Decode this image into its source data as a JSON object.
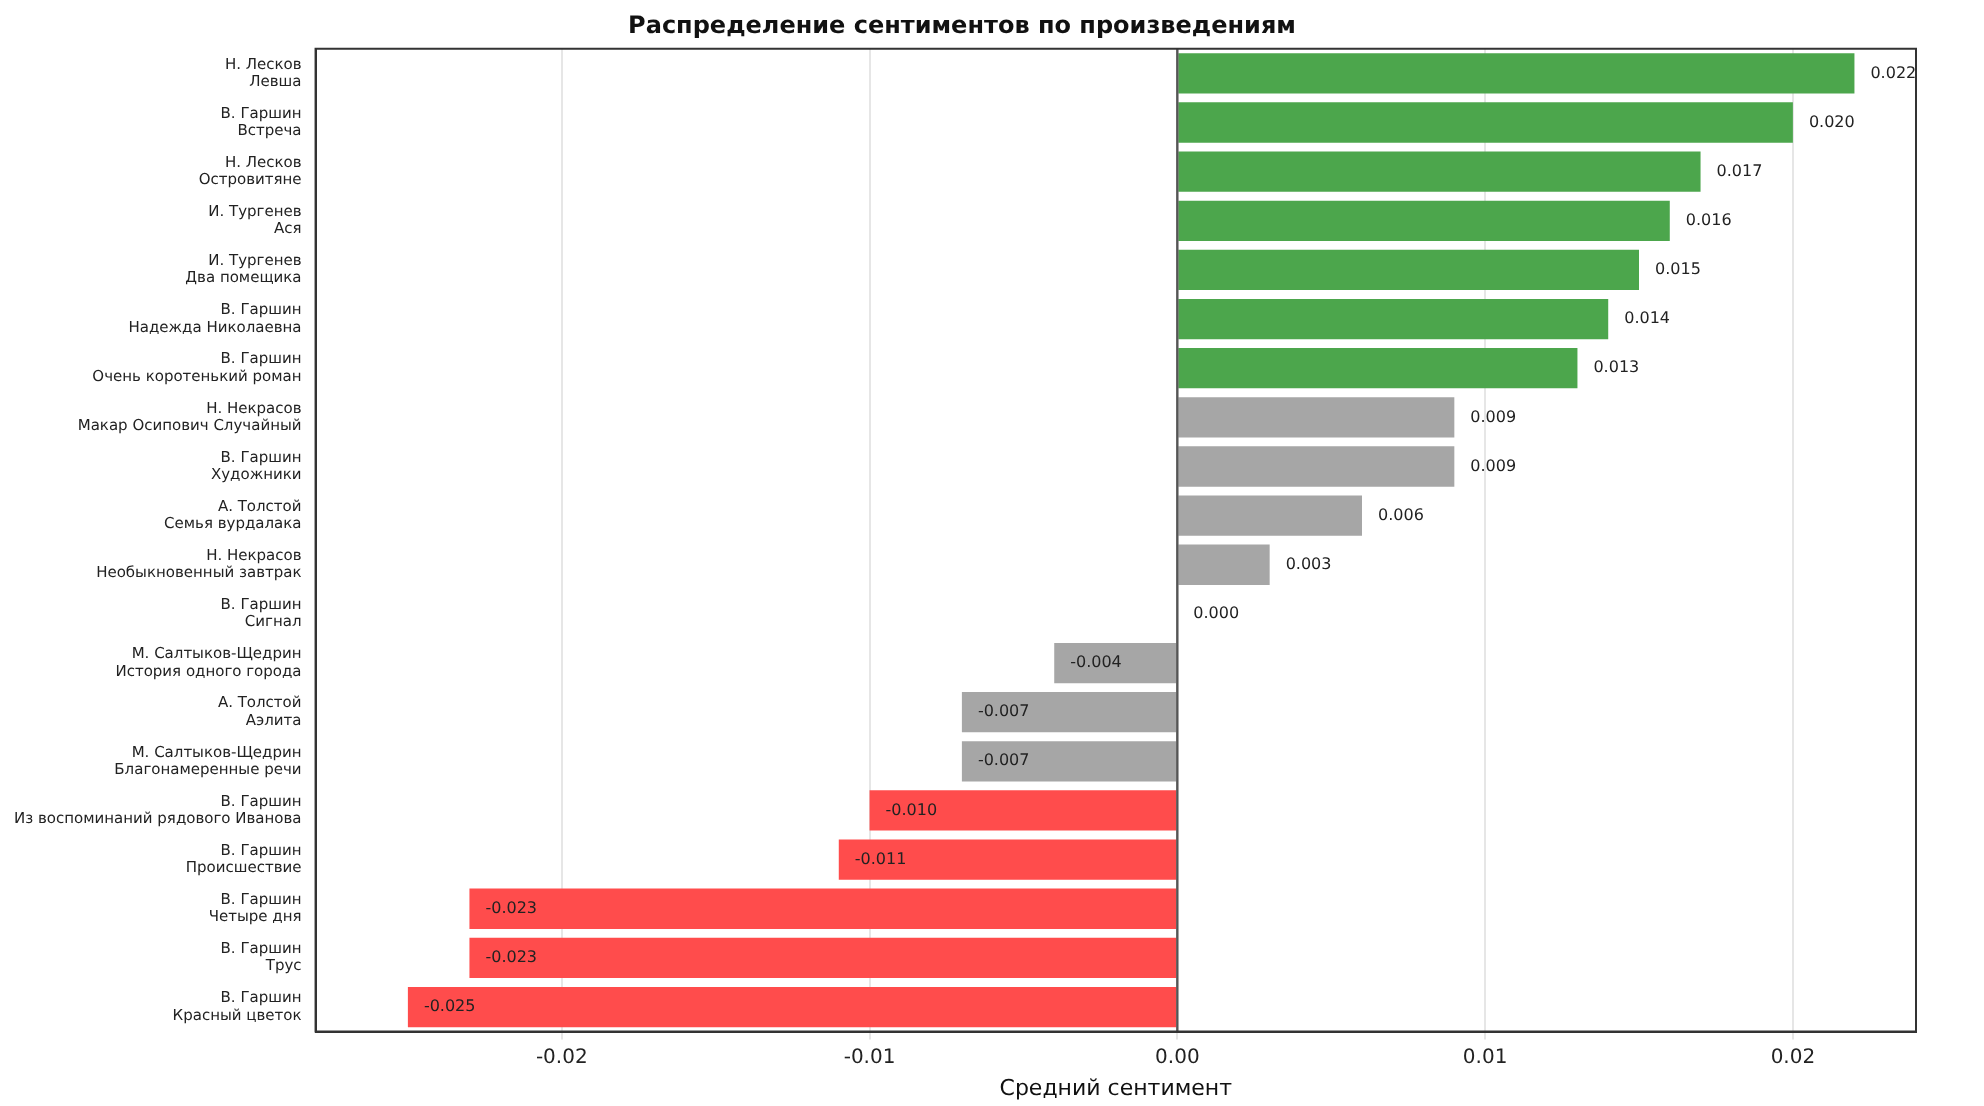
{
  "chart_data": {
    "type": "bar",
    "orientation": "horizontal",
    "title": "Распределение сентиментов по произведениям",
    "xlabel": "Средний сентимент",
    "categories": [
      "Н. Лесков\nЛевша",
      "В. Гаршин\nВстреча",
      "Н. Лесков\nОстровитяне",
      "И. Тургенев\nАся",
      "И. Тургенев\nДва помещика",
      "В. Гаршин\nНадежда Николаевна",
      "В. Гаршин\nОчень коротенький роман",
      "Н. Некрасов\nМакар Осипович Случайный",
      "В. Гаршин\nХудожники",
      "А. Толстой\nСемья вурдалака",
      "Н. Некрасов\nНеобыкновенный завтрак",
      "В. Гаршин\nСигнал",
      "М. Салтыков-Щедрин\nИстория одного города",
      "А. Толстой\nАэлита",
      "М. Салтыков-Щедрин\nБлагонамеренные речи",
      "В. Гаршин\nИз воспоминаний рядового Иванова",
      "В. Гаршин\nПроисшествие",
      "В. Гаршин\nЧетыре дня",
      "В. Гаршин\nТрус",
      "В. Гаршин\nКрасный цветок"
    ],
    "values": [
      0.022,
      0.02,
      0.017,
      0.016,
      0.015,
      0.014,
      0.013,
      0.009,
      0.009,
      0.006,
      0.003,
      0.0,
      -0.004,
      -0.007,
      -0.007,
      -0.01,
      -0.011,
      -0.023,
      -0.023,
      -0.025
    ],
    "colors": [
      "#4ca64c",
      "#4ca64c",
      "#4ca64c",
      "#4ca64c",
      "#4ca64c",
      "#4ca64c",
      "#4ca64c",
      "#a6a6a6",
      "#a6a6a6",
      "#a6a6a6",
      "#a6a6a6",
      "#a6a6a6",
      "#a6a6a6",
      "#a6a6a6",
      "#a6a6a6",
      "#ff4c4c",
      "#ff4c4c",
      "#ff4c4c",
      "#ff4c4c",
      "#ff4c4c"
    ],
    "value_labels": [
      "0.022",
      "0.020",
      "0.017",
      "0.016",
      "0.015",
      "0.014",
      "0.013",
      "0.009",
      "0.009",
      "0.006",
      "0.003",
      "0.000",
      "-0.004",
      "-0.007",
      "-0.007",
      "-0.010",
      "-0.011",
      "-0.023",
      "-0.023",
      "-0.025"
    ],
    "xlim": [
      -0.028,
      0.024
    ],
    "xticks": [
      {
        "value": -0.02,
        "label": "-0.02"
      },
      {
        "value": -0.01,
        "label": "-0.01"
      },
      {
        "value": 0,
        "label": "0.00"
      },
      {
        "value": 0.01,
        "label": "0.01"
      },
      {
        "value": 0.02,
        "label": "0.02"
      }
    ],
    "ref_lines": [
      {
        "axis": "x",
        "value": 0,
        "color": "#555555"
      }
    ],
    "grid": "x",
    "legend": false
  }
}
